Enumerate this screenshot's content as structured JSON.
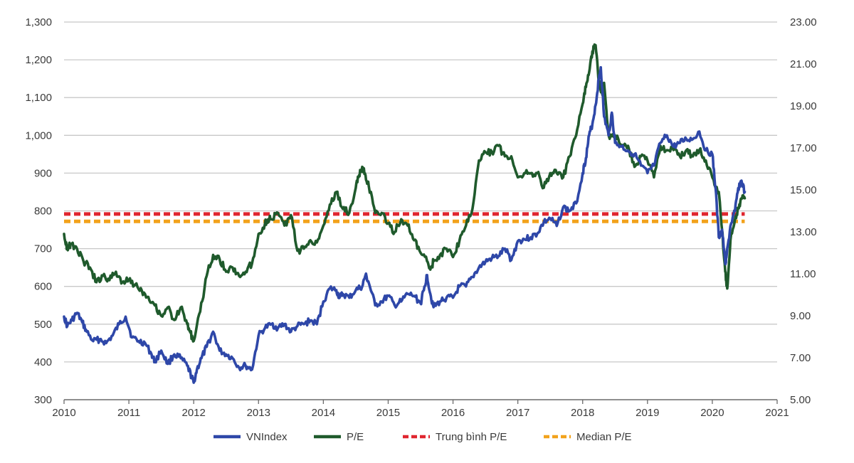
{
  "chart_data": {
    "type": "line",
    "title": "",
    "xlabel": "",
    "ylabel": "",
    "y2label": "",
    "xlim": [
      2010,
      2021
    ],
    "ylim": [
      300,
      1300
    ],
    "y2lim": [
      5.0,
      23.0
    ],
    "x_ticks": [
      "2010",
      "2011",
      "2012",
      "2013",
      "2014",
      "2015",
      "2016",
      "2017",
      "2018",
      "2019",
      "2020",
      "2021"
    ],
    "y_ticks": [
      "300",
      "400",
      "500",
      "600",
      "700",
      "800",
      "900",
      "1,000",
      "1,100",
      "1,200",
      "1,300"
    ],
    "y2_ticks": [
      "5.00",
      "7.00",
      "9.00",
      "11.00",
      "13.00",
      "15.00",
      "17.00",
      "19.00",
      "21.00",
      "23.00"
    ],
    "grid": true,
    "legend_position": "bottom",
    "colors": {
      "vnindex": "#2e47a8",
      "pe": "#1f5a2c",
      "pe_mean": "#e0262f",
      "pe_median": "#f2a21c",
      "grid": "#c8c8c8",
      "axis": "#6a6a6a",
      "text": "#3a3a3a"
    },
    "series": [
      {
        "name": "VNIndex",
        "axis": "left",
        "style": "solid",
        "x": [
          2010.0,
          2010.05,
          2010.12,
          2010.2,
          2010.28,
          2010.35,
          2010.45,
          2010.55,
          2010.65,
          2010.75,
          2010.85,
          2010.95,
          2011.05,
          2011.15,
          2011.25,
          2011.35,
          2011.4,
          2011.5,
          2011.6,
          2011.7,
          2011.8,
          2011.9,
          2011.97,
          2012.0,
          2012.05,
          2012.12,
          2012.2,
          2012.3,
          2012.4,
          2012.5,
          2012.6,
          2012.7,
          2012.8,
          2012.9,
          2013.0,
          2013.1,
          2013.2,
          2013.3,
          2013.4,
          2013.5,
          2013.6,
          2013.7,
          2013.8,
          2013.9,
          2014.0,
          2014.1,
          2014.2,
          2014.25,
          2014.3,
          2014.4,
          2014.5,
          2014.6,
          2014.65,
          2014.7,
          2014.8,
          2014.9,
          2015.0,
          2015.1,
          2015.2,
          2015.3,
          2015.4,
          2015.5,
          2015.55,
          2015.6,
          2015.65,
          2015.7,
          2015.8,
          2015.9,
          2016.0,
          2016.1,
          2016.2,
          2016.3,
          2016.4,
          2016.5,
          2016.6,
          2016.7,
          2016.8,
          2016.9,
          2017.0,
          2017.1,
          2017.2,
          2017.3,
          2017.4,
          2017.5,
          2017.6,
          2017.7,
          2017.8,
          2017.9,
          2018.0,
          2018.05,
          2018.1,
          2018.15,
          2018.2,
          2018.25,
          2018.28,
          2018.33,
          2018.4,
          2018.45,
          2018.5,
          2018.6,
          2018.7,
          2018.8,
          2018.9,
          2019.0,
          2019.1,
          2019.2,
          2019.3,
          2019.4,
          2019.5,
          2019.6,
          2019.7,
          2019.8,
          2019.9,
          2020.0,
          2020.05,
          2020.1,
          2020.15,
          2020.2,
          2020.22,
          2020.28,
          2020.35,
          2020.4,
          2020.45,
          2020.5
        ],
        "values": [
          520,
          495,
          510,
          530,
          505,
          480,
          455,
          460,
          450,
          470,
          500,
          520,
          465,
          455,
          450,
          420,
          400,
          430,
          395,
          420,
          410,
          390,
          360,
          345,
          380,
          410,
          440,
          480,
          430,
          420,
          410,
          385,
          390,
          380,
          470,
          490,
          500,
          490,
          500,
          480,
          495,
          500,
          510,
          500,
          560,
          595,
          590,
          570,
          580,
          570,
          590,
          600,
          630,
          610,
          550,
          560,
          575,
          550,
          560,
          580,
          575,
          555,
          590,
          630,
          580,
          545,
          560,
          570,
          570,
          600,
          600,
          625,
          650,
          665,
          675,
          680,
          700,
          670,
          720,
          725,
          730,
          740,
          770,
          780,
          760,
          810,
          800,
          820,
          900,
          940,
          1000,
          1030,
          1080,
          1150,
          1180,
          1050,
          1000,
          1060,
          980,
          970,
          960,
          950,
          920,
          900,
          920,
          980,
          1000,
          970,
          980,
          990,
          990,
          1010,
          960,
          950,
          860,
          730,
          750,
          660,
          680,
          760,
          800,
          860,
          880,
          850
        ]
      },
      {
        "name": "P/E",
        "axis": "right",
        "style": "solid",
        "x": [
          2010.0,
          2010.05,
          2010.1,
          2010.2,
          2010.3,
          2010.4,
          2010.5,
          2010.6,
          2010.7,
          2010.8,
          2010.9,
          2011.0,
          2011.1,
          2011.2,
          2011.3,
          2011.4,
          2011.5,
          2011.6,
          2011.7,
          2011.8,
          2011.9,
          2011.95,
          2012.0,
          2012.1,
          2012.2,
          2012.3,
          2012.4,
          2012.5,
          2012.6,
          2012.7,
          2012.8,
          2012.9,
          2013.0,
          2013.1,
          2013.15,
          2013.2,
          2013.3,
          2013.4,
          2013.5,
          2013.6,
          2013.7,
          2013.8,
          2013.9,
          2014.0,
          2014.1,
          2014.2,
          2014.3,
          2014.4,
          2014.5,
          2014.55,
          2014.6,
          2014.65,
          2014.7,
          2014.8,
          2014.9,
          2015.0,
          2015.1,
          2015.2,
          2015.3,
          2015.4,
          2015.5,
          2015.6,
          2015.65,
          2015.7,
          2015.8,
          2015.9,
          2016.0,
          2016.1,
          2016.2,
          2016.3,
          2016.4,
          2016.5,
          2016.6,
          2016.7,
          2016.8,
          2016.9,
          2017.0,
          2017.1,
          2017.2,
          2017.3,
          2017.4,
          2017.5,
          2017.6,
          2017.7,
          2017.8,
          2017.9,
          2018.0,
          2018.05,
          2018.1,
          2018.15,
          2018.2,
          2018.25,
          2018.3,
          2018.33,
          2018.4,
          2018.5,
          2018.6,
          2018.7,
          2018.8,
          2018.9,
          2019.0,
          2019.1,
          2019.2,
          2019.3,
          2019.4,
          2019.5,
          2019.6,
          2019.7,
          2019.8,
          2019.9,
          2020.0,
          2020.05,
          2020.1,
          2020.15,
          2020.2,
          2020.23,
          2020.28,
          2020.35,
          2020.4,
          2020.45,
          2020.5
        ],
        "values": [
          12.9,
          12.2,
          12.4,
          12.2,
          11.6,
          11.3,
          10.6,
          10.9,
          10.7,
          11.1,
          10.6,
          10.7,
          10.5,
          10.2,
          9.9,
          9.5,
          9.0,
          9.4,
          8.8,
          9.4,
          8.6,
          8.2,
          7.8,
          9.2,
          10.9,
          11.9,
          11.7,
          11.1,
          11.3,
          10.9,
          11.1,
          11.5,
          12.9,
          13.4,
          13.6,
          13.6,
          13.9,
          13.3,
          13.8,
          12.1,
          12.2,
          12.6,
          12.5,
          13.3,
          14.3,
          14.9,
          14.1,
          13.9,
          15.1,
          15.7,
          16.1,
          15.7,
          15.2,
          13.9,
          13.9,
          13.4,
          13.0,
          13.6,
          13.3,
          12.6,
          12.0,
          11.6,
          11.2,
          11.6,
          11.9,
          12.2,
          11.8,
          12.6,
          13.3,
          14.1,
          16.4,
          16.8,
          16.8,
          17.1,
          16.6,
          16.6,
          15.6,
          15.8,
          15.8,
          15.8,
          15.1,
          15.8,
          15.8,
          15.6,
          16.6,
          17.6,
          19.1,
          19.9,
          20.6,
          21.6,
          21.9,
          20.1,
          19.6,
          20.1,
          17.6,
          17.6,
          17.1,
          17.1,
          16.1,
          16.6,
          16.4,
          15.6,
          17.1,
          16.9,
          16.9,
          16.6,
          16.9,
          16.6,
          16.9,
          16.4,
          15.6,
          15.1,
          14.9,
          13.1,
          11.1,
          10.3,
          12.6,
          13.6,
          14.1,
          14.6,
          14.6
        ]
      },
      {
        "name": "Trung bình P/E",
        "axis": "right",
        "style": "dashed",
        "x": [
          2010.0,
          2020.5
        ],
        "values": [
          13.85,
          13.85
        ]
      },
      {
        "name": "Median P/E",
        "axis": "right",
        "style": "dashed",
        "x": [
          2010.0,
          2020.5
        ],
        "values": [
          13.5,
          13.5
        ]
      }
    ],
    "legend": [
      "VNIndex",
      "P/E",
      "Trung bình P/E",
      "Median P/E"
    ]
  }
}
